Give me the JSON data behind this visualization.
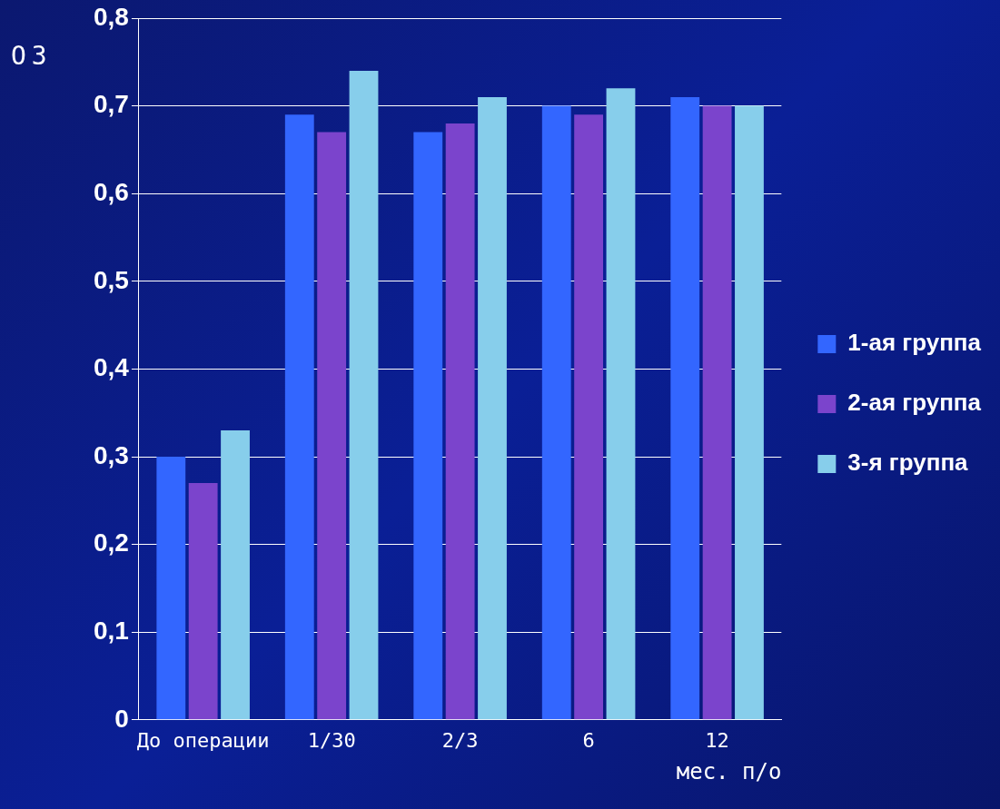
{
  "chart_data": {
    "type": "bar",
    "ylabel": "ОЗ",
    "xlabel": "мес. п/о",
    "categories": [
      "До операции",
      "1/30",
      "2/3",
      "6",
      "12"
    ],
    "series": [
      {
        "name": "1-ая группа",
        "color": "#3366ff",
        "values": [
          0.3,
          0.69,
          0.67,
          0.7,
          0.71
        ]
      },
      {
        "name": "2-ая группа",
        "color": "#7b44cc",
        "values": [
          0.27,
          0.67,
          0.68,
          0.69,
          0.7
        ]
      },
      {
        "name": "3-я группа",
        "color": "#87ceeb",
        "values": [
          0.33,
          0.74,
          0.71,
          0.72,
          0.7
        ]
      }
    ],
    "ylim": [
      0,
      0.8
    ],
    "yticks": [
      0,
      {
        "value": 0.1,
        "label": "0,1"
      },
      {
        "value": 0.2,
        "label": "0,2"
      },
      {
        "value": 0.3,
        "label": "0,3"
      },
      {
        "value": 0.4,
        "label": "0,4"
      },
      {
        "value": 0.5,
        "label": "0,5"
      },
      {
        "value": 0.6,
        "label": "0,6"
      },
      {
        "value": 0.7,
        "label": "0,7"
      },
      {
        "value": 0.8,
        "label": "0,8"
      }
    ],
    "grid": "y",
    "legend": "right"
  }
}
